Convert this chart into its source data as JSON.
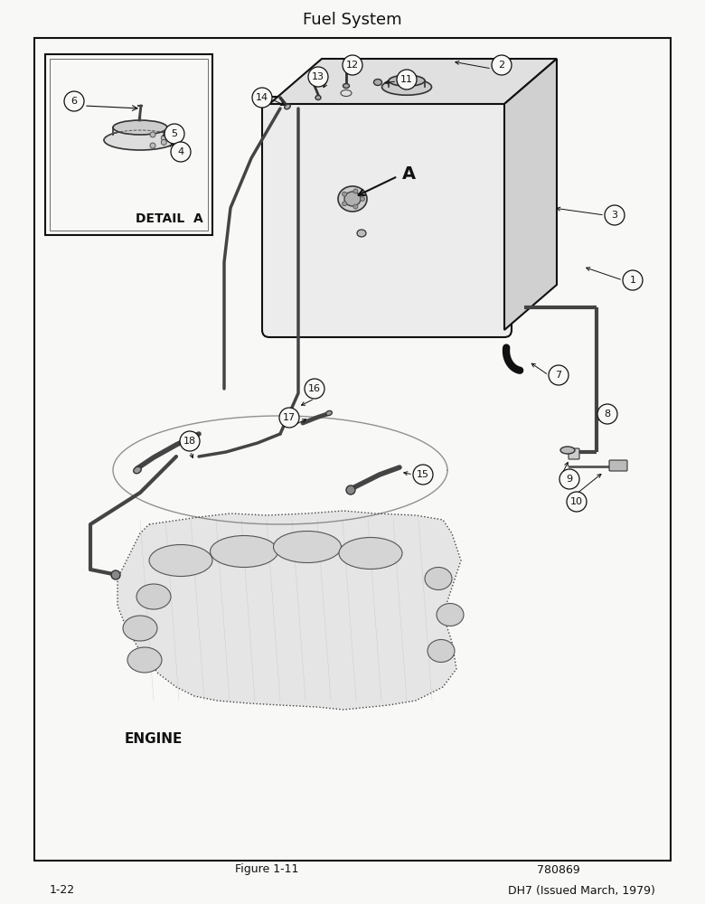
{
  "title": "Fuel System",
  "title_fontsize": 13,
  "fig_caption": "Figure 1-11",
  "fig_number": "780869",
  "page_number": "1-22",
  "page_footer": "DH7 (Issued March, 1979)",
  "bg_color": "#f8f8f6",
  "border_color": "#111111",
  "text_color": "#111111",
  "detail_label": "DETAIL  A",
  "engine_label": "ENGINE",
  "arrow_a_label": "A",
  "lw_tube": 2.5,
  "lw_border": 1.5
}
